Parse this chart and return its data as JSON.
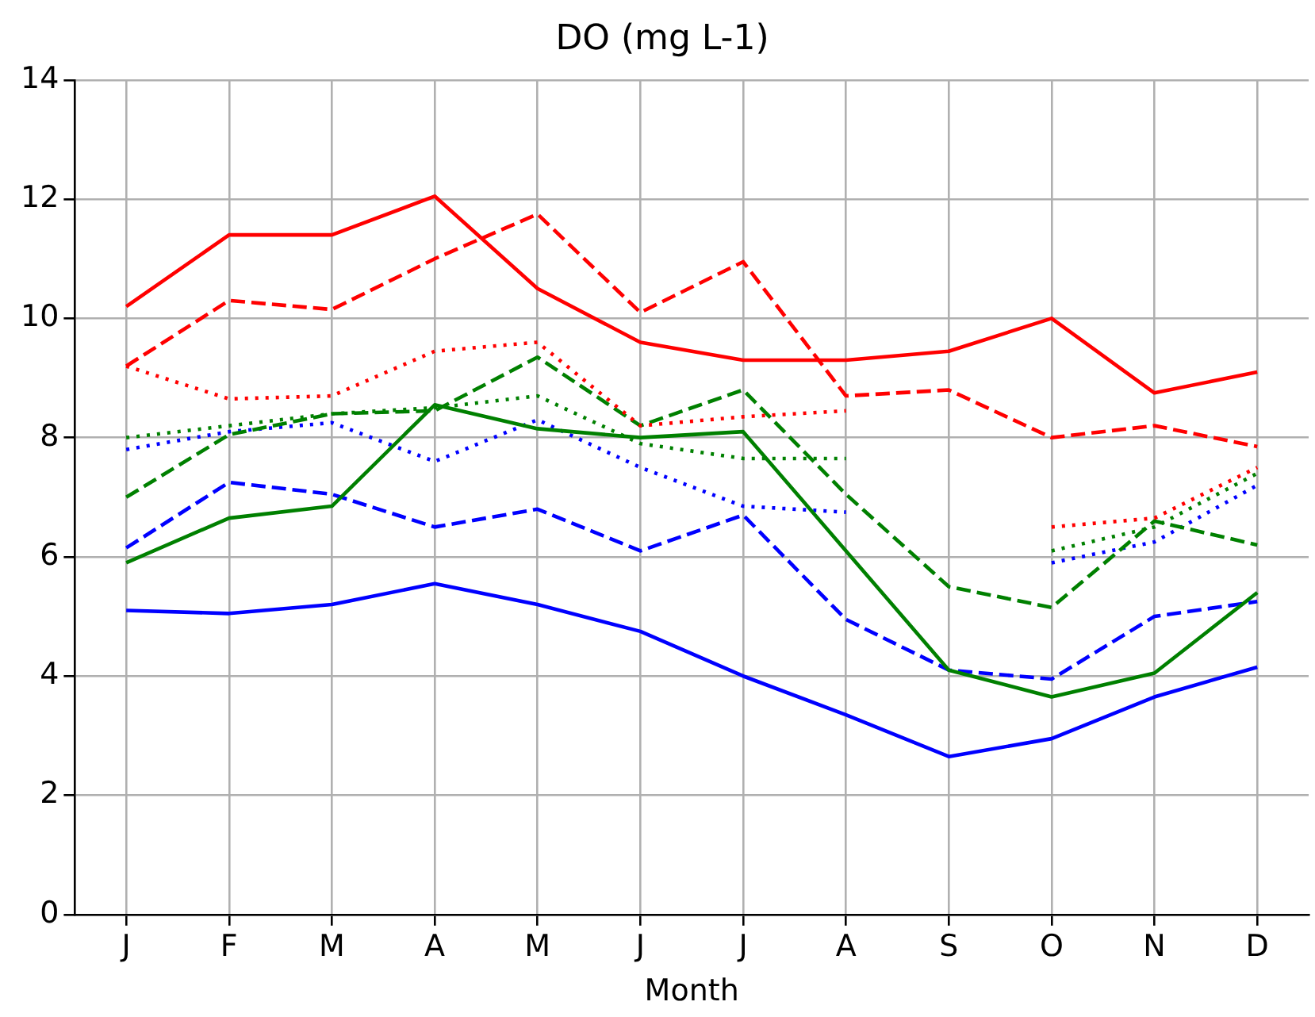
{
  "chart_data": {
    "type": "line",
    "title": "DO (mg L-1)",
    "xlabel": "Month",
    "categories": [
      "J",
      "F",
      "M",
      "A",
      "M",
      "J",
      "J",
      "A",
      "S",
      "O",
      "N",
      "D"
    ],
    "ylim": [
      0,
      14
    ],
    "yticks": [
      0,
      2,
      4,
      6,
      8,
      10,
      12,
      14
    ],
    "grid": true,
    "legend": false,
    "marker": "none",
    "series": [
      {
        "color": "#ff0000",
        "line_style": "solid",
        "values": [
          10.2,
          11.4,
          11.4,
          12.05,
          10.5,
          9.6,
          9.3,
          9.3,
          9.45,
          10.0,
          8.75,
          9.1
        ]
      },
      {
        "color": "#ff0000",
        "line_style": "dashed",
        "values": [
          9.2,
          10.3,
          10.15,
          11.0,
          11.75,
          10.1,
          10.95,
          8.7,
          8.8,
          8.0,
          8.2,
          7.85
        ]
      },
      {
        "color": "#ff0000",
        "line_style": "dotted",
        "values": [
          9.2,
          8.65,
          8.7,
          9.45,
          9.6,
          8.2,
          8.35,
          8.45,
          null,
          6.5,
          6.65,
          7.5
        ]
      },
      {
        "color": "#008000",
        "line_style": "solid",
        "values": [
          5.9,
          6.65,
          6.85,
          8.55,
          8.15,
          8.0,
          8.1,
          6.1,
          4.1,
          3.65,
          4.05,
          5.4
        ]
      },
      {
        "color": "#008000",
        "line_style": "dashed",
        "values": [
          7.0,
          8.05,
          8.4,
          8.45,
          9.35,
          8.2,
          8.8,
          7.05,
          5.5,
          5.15,
          6.6,
          6.2
        ]
      },
      {
        "color": "#008000",
        "line_style": "dotted",
        "values": [
          8.0,
          8.2,
          8.4,
          8.5,
          8.7,
          7.9,
          7.65,
          7.65,
          null,
          6.1,
          6.5,
          7.4
        ]
      },
      {
        "color": "#0000ff",
        "line_style": "solid",
        "values": [
          5.1,
          5.05,
          5.2,
          5.55,
          5.2,
          4.75,
          4.0,
          3.35,
          2.65,
          2.95,
          3.65,
          4.15
        ]
      },
      {
        "color": "#0000ff",
        "line_style": "dashed",
        "values": [
          6.15,
          7.25,
          7.05,
          6.5,
          6.8,
          6.1,
          6.7,
          4.95,
          4.1,
          3.95,
          5.0,
          5.25
        ]
      },
      {
        "color": "#0000ff",
        "line_style": "dotted",
        "values": [
          7.8,
          8.1,
          8.25,
          7.6,
          8.3,
          7.5,
          6.85,
          6.75,
          null,
          5.9,
          6.25,
          7.2
        ]
      }
    ]
  }
}
